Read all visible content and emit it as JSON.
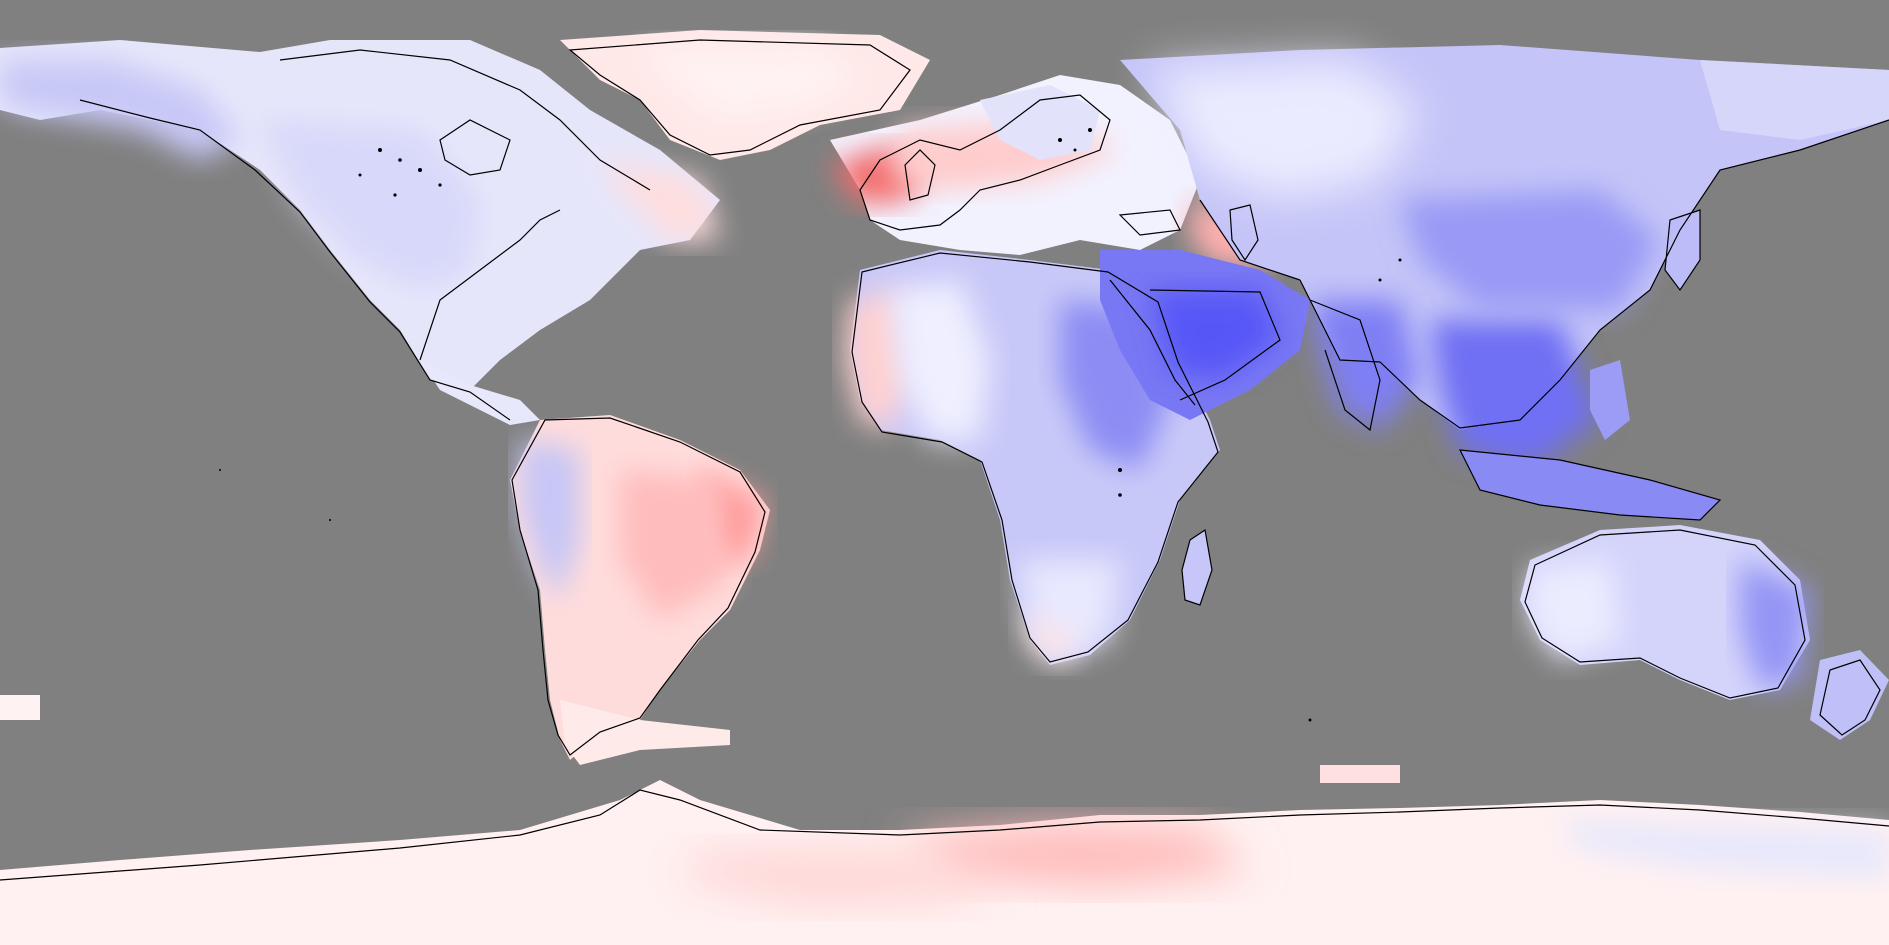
{
  "map": {
    "projection": "equirectangular",
    "variable": "anomaly",
    "ocean_color": "#808080",
    "coastline_color": "#000000",
    "colormap": {
      "strong_negative": "#5a5af7",
      "negative": "#8a8af5",
      "weak_negative": "#c4c4f8",
      "slight_negative": "#ebebff",
      "neutral": "#ffffff",
      "slight_positive": "#ffeeee",
      "weak_positive": "#ffcccc",
      "positive": "#ff9999",
      "strong_positive": "#f26666"
    },
    "regions": [
      {
        "name": "north-america",
        "sign": "negative"
      },
      {
        "name": "greenland",
        "sign": "positive"
      },
      {
        "name": "south-america",
        "sign": "positive"
      },
      {
        "name": "europe",
        "sign": "mixed"
      },
      {
        "name": "africa",
        "sign": "negative"
      },
      {
        "name": "middle-east",
        "sign": "strong-negative"
      },
      {
        "name": "asia",
        "sign": "negative"
      },
      {
        "name": "australia",
        "sign": "negative"
      },
      {
        "name": "antarctica",
        "sign": "positive"
      }
    ]
  }
}
